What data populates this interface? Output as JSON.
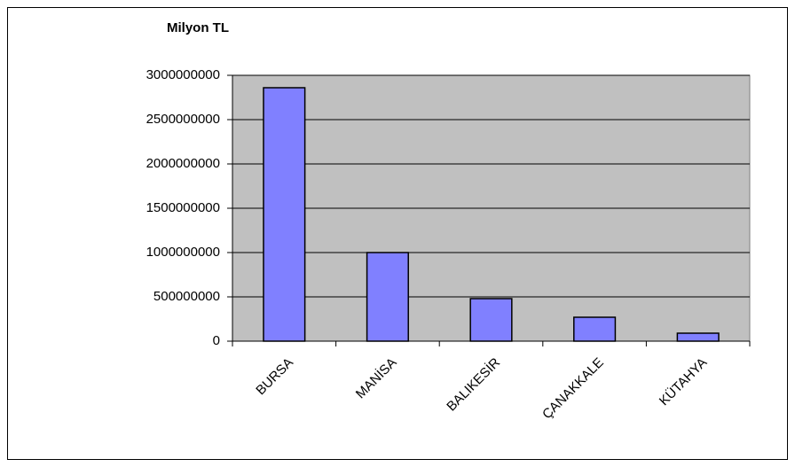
{
  "chart_data": {
    "type": "bar",
    "title": "Milyon TL",
    "categories": [
      "BURSA",
      "MANİSA",
      "BALIKESİR",
      "ÇANAKKALE",
      "KÜTAHYA"
    ],
    "values": [
      2860000000,
      1000000000,
      480000000,
      270000000,
      90000000
    ],
    "color": "#8080ff",
    "ylim": [
      0,
      3000000000
    ],
    "yticks": [
      0,
      500000000,
      1000000000,
      1500000000,
      2000000000,
      2500000000,
      3000000000
    ],
    "grid": true
  }
}
